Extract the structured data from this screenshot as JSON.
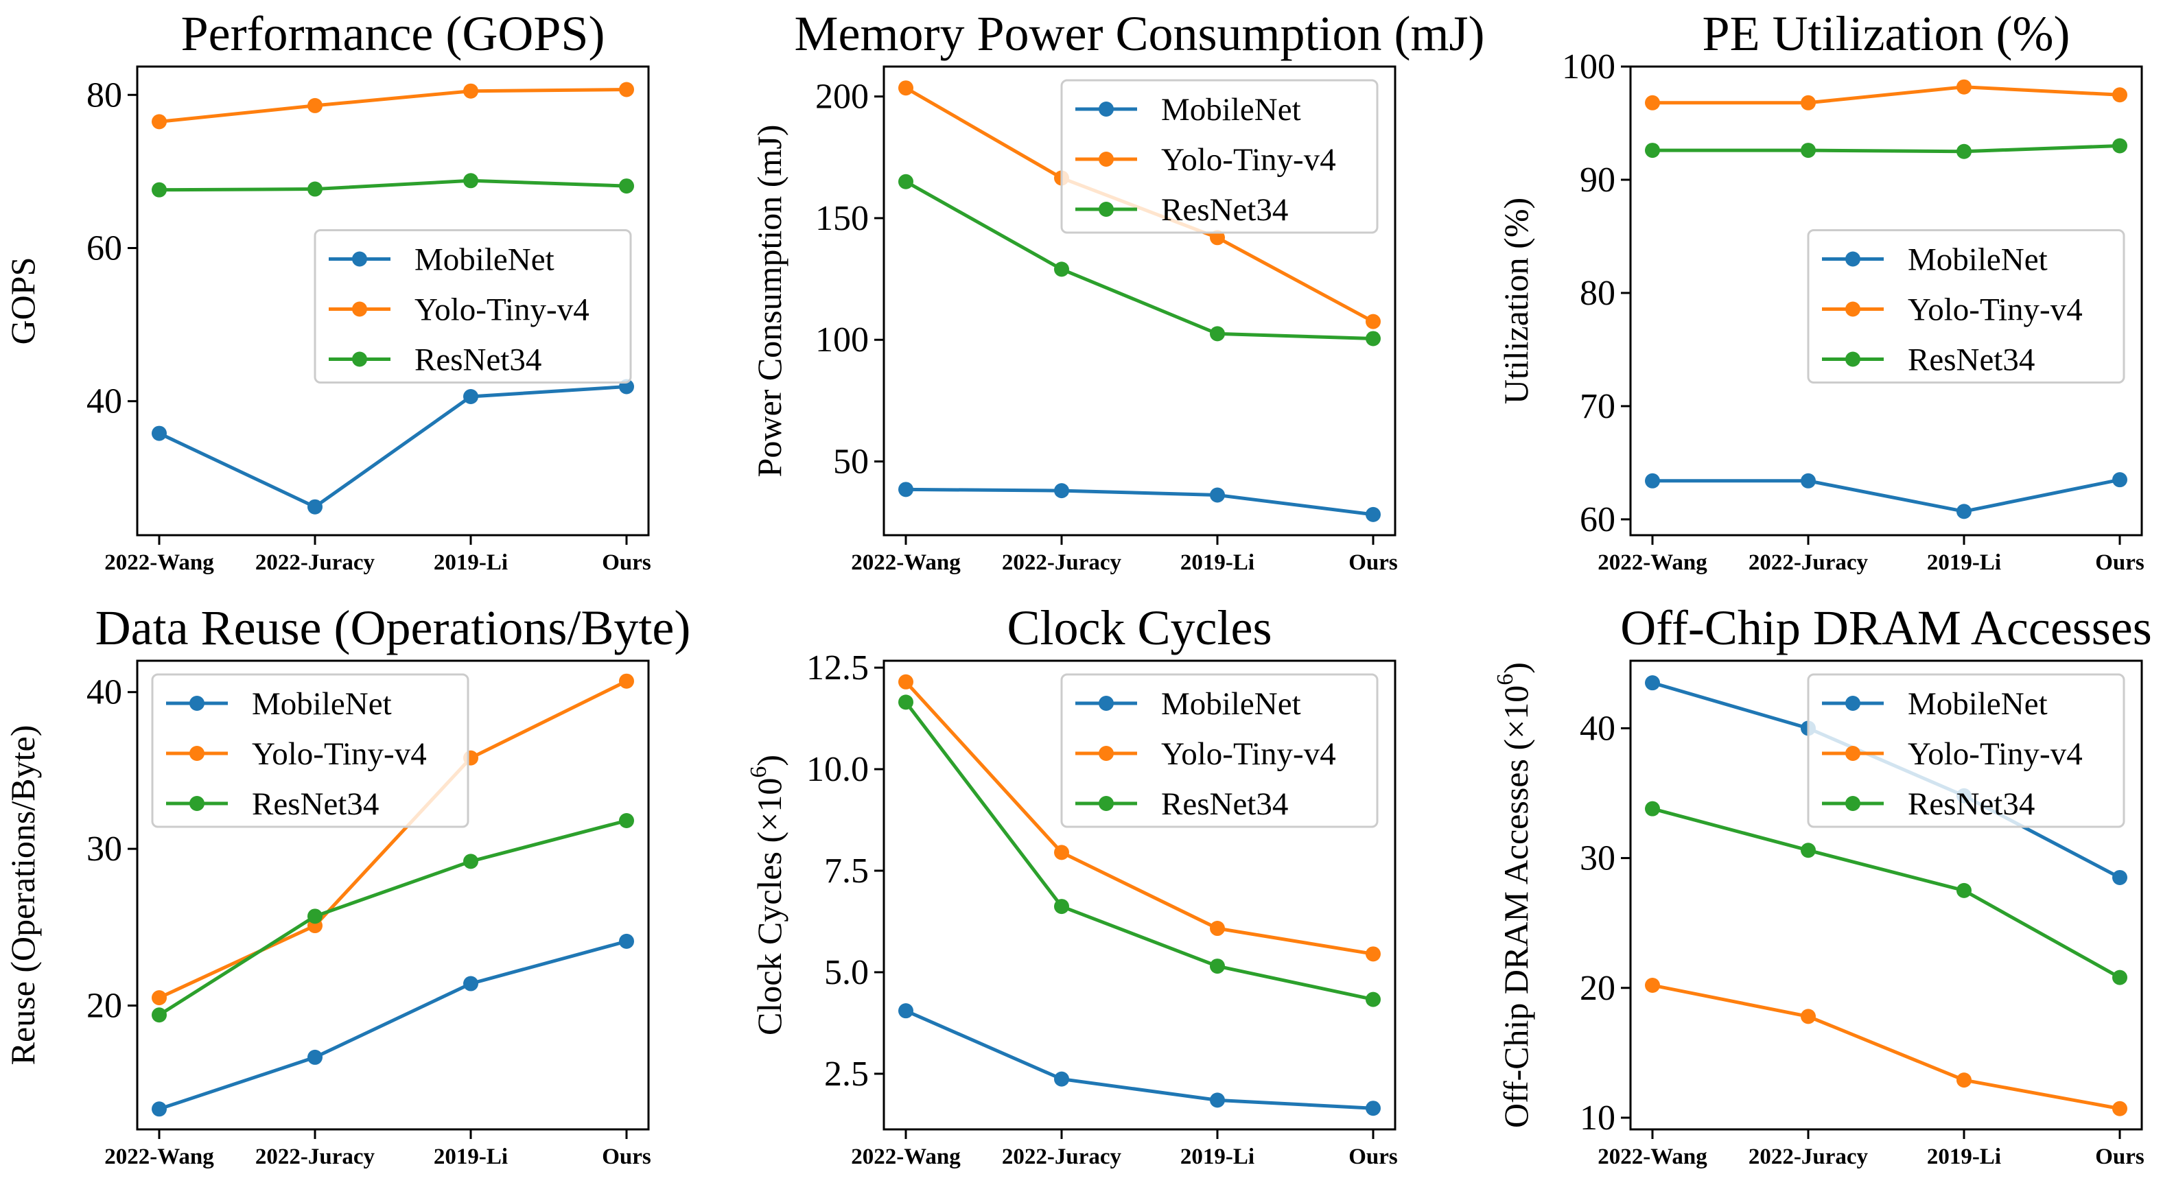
{
  "figure": {
    "colors": {
      "MobileNet": "#1f77b4",
      "Yolo-Tiny-v4": "#ff7f0e",
      "ResNet34": "#2ca02c"
    }
  },
  "chart_data": [
    {
      "type": "line",
      "title": "Performance (GOPS)",
      "ylabel": "GOPS",
      "ylabel_sup": "",
      "categories": [
        "2022-Wang",
        "2022-Juracy",
        "2019-Li",
        "Ours"
      ],
      "ylim": [
        22.5,
        83.7
      ],
      "yticks": [
        40,
        60,
        80
      ],
      "ytick_labels": [
        "40",
        "60",
        "80"
      ],
      "legend_position": "center-right",
      "series": [
        {
          "name": "MobileNet",
          "values": [
            35.8,
            26.2,
            40.6,
            41.9
          ]
        },
        {
          "name": "Yolo-Tiny-v4",
          "values": [
            76.5,
            78.6,
            80.5,
            80.7
          ]
        },
        {
          "name": "ResNet34",
          "values": [
            67.6,
            67.7,
            68.8,
            68.1
          ]
        }
      ]
    },
    {
      "type": "line",
      "title": "Memory Power Consumption (mJ)",
      "ylabel": "Power Consumption (mJ)",
      "ylabel_sup": "",
      "categories": [
        "2022-Wang",
        "2022-Juracy",
        "2019-Li",
        "Ours"
      ],
      "ylim": [
        19.7,
        212.3
      ],
      "yticks": [
        50,
        100,
        150,
        200
      ],
      "ytick_labels": [
        "50",
        "100",
        "150",
        "200"
      ],
      "legend_position": "top-right",
      "series": [
        {
          "name": "MobileNet",
          "values": [
            38.5,
            38.0,
            36.2,
            28.2
          ]
        },
        {
          "name": "Yolo-Tiny-v4",
          "values": [
            203.5,
            166.5,
            142.0,
            107.5
          ]
        },
        {
          "name": "ResNet34",
          "values": [
            165.0,
            129.0,
            102.5,
            100.5
          ]
        }
      ]
    },
    {
      "type": "line",
      "title": "PE Utilization (%)",
      "ylabel": "Utilization (%)",
      "ylabel_sup": "",
      "categories": [
        "2022-Wang",
        "2022-Juracy",
        "2019-Li",
        "Ours"
      ],
      "ylim": [
        58.6,
        100.0
      ],
      "yticks": [
        60,
        70,
        80,
        90,
        100
      ],
      "ytick_labels": [
        "60",
        "70",
        "80",
        "90",
        "100"
      ],
      "legend_position": "center-right",
      "series": [
        {
          "name": "MobileNet",
          "values": [
            63.4,
            63.4,
            60.7,
            63.5
          ]
        },
        {
          "name": "Yolo-Tiny-v4",
          "values": [
            96.8,
            96.8,
            98.2,
            97.5
          ]
        },
        {
          "name": "ResNet34",
          "values": [
            92.6,
            92.6,
            92.5,
            93.0
          ]
        }
      ]
    },
    {
      "type": "line",
      "title": "Data Reuse (Operations/Byte)",
      "ylabel": "Reuse (Operations/Byte)",
      "ylabel_sup": "",
      "categories": [
        "2022-Wang",
        "2022-Juracy",
        "2019-Li",
        "Ours"
      ],
      "ylim": [
        12.1,
        42.0
      ],
      "yticks": [
        20,
        30,
        40
      ],
      "ytick_labels": [
        "20",
        "30",
        "40"
      ],
      "legend_position": "top-left",
      "series": [
        {
          "name": "MobileNet",
          "values": [
            13.4,
            16.7,
            21.4,
            24.1
          ]
        },
        {
          "name": "Yolo-Tiny-v4",
          "values": [
            20.5,
            25.1,
            35.8,
            40.7
          ]
        },
        {
          "name": "ResNet34",
          "values": [
            19.4,
            25.7,
            29.2,
            31.8
          ]
        }
      ]
    },
    {
      "type": "line",
      "title": "Clock Cycles",
      "ylabel": "Clock Cycles (×10",
      "ylabel_sup": "6",
      "ylabel_tail": ")",
      "categories": [
        "2022-Wang",
        "2022-Juracy",
        "2019-Li",
        "Ours"
      ],
      "ylim": [
        1.13,
        12.67
      ],
      "yticks": [
        2.5,
        5.0,
        7.5,
        10.0,
        12.5
      ],
      "ytick_labels": [
        "2.5",
        "5.0",
        "7.5",
        "10.0",
        "12.5"
      ],
      "legend_position": "top-right",
      "series": [
        {
          "name": "MobileNet",
          "values": [
            4.05,
            2.37,
            1.85,
            1.65
          ]
        },
        {
          "name": "Yolo-Tiny-v4",
          "values": [
            12.15,
            7.95,
            6.08,
            5.45
          ]
        },
        {
          "name": "ResNet34",
          "values": [
            11.65,
            6.62,
            5.15,
            4.33
          ]
        }
      ]
    },
    {
      "type": "line",
      "title": "Off-Chip DRAM Accesses",
      "ylabel": "Off-Chip DRAM Accesses (×10",
      "ylabel_sup": "6",
      "ylabel_tail": ")",
      "categories": [
        "2022-Wang",
        "2022-Juracy",
        "2019-Li",
        "Ours"
      ],
      "ylim": [
        9.1,
        45.2
      ],
      "yticks": [
        10,
        20,
        30,
        40
      ],
      "ytick_labels": [
        "10",
        "20",
        "30",
        "40"
      ],
      "legend_position": "top-right",
      "series": [
        {
          "name": "MobileNet",
          "values": [
            43.5,
            40.0,
            34.8,
            28.5
          ]
        },
        {
          "name": "Yolo-Tiny-v4",
          "values": [
            20.2,
            17.8,
            12.9,
            10.7
          ]
        },
        {
          "name": "ResNet34",
          "values": [
            33.8,
            30.6,
            27.5,
            20.8
          ]
        }
      ]
    }
  ]
}
